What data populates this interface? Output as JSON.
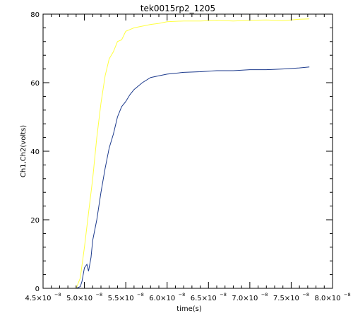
{
  "chart_data": {
    "type": "line",
    "title": "tek0015rp2_1205",
    "xlabel": "time(s)",
    "ylabel": "Ch1,Ch2(volts)",
    "xlim": [
      4.5e-08,
      8e-08
    ],
    "ylim": [
      0,
      80
    ],
    "grid": false,
    "legend": "none",
    "x_ticks": [
      {
        "value": 4.5e-08,
        "mantissa": "4.5×10",
        "exp": "−8"
      },
      {
        "value": 5e-08,
        "mantissa": "5.0×10",
        "exp": "−8"
      },
      {
        "value": 5.5e-08,
        "mantissa": "5.5×10",
        "exp": "−8"
      },
      {
        "value": 6e-08,
        "mantissa": "6.0×10",
        "exp": "−8"
      },
      {
        "value": 6.5e-08,
        "mantissa": "6.5×10",
        "exp": "−8"
      },
      {
        "value": 7e-08,
        "mantissa": "7.0×10",
        "exp": "−8"
      },
      {
        "value": 7.5e-08,
        "mantissa": "7.5×10",
        "exp": "−8"
      },
      {
        "value": 8e-08,
        "mantissa": "8.0×10",
        "exp": "−8"
      }
    ],
    "y_ticks": [
      {
        "value": 0,
        "label": "0"
      },
      {
        "value": 20,
        "label": "20"
      },
      {
        "value": 40,
        "label": "40"
      },
      {
        "value": 60,
        "label": "60"
      },
      {
        "value": 80,
        "label": "80"
      }
    ],
    "series": [
      {
        "color": "#ffff40",
        "x": [
          4.9e-08,
          4.95e-08,
          5e-08,
          5.05e-08,
          5.1e-08,
          5.15e-08,
          5.2e-08,
          5.25e-08,
          5.3e-08,
          5.35e-08,
          5.4e-08,
          5.45e-08,
          5.5e-08,
          5.55e-08,
          5.6e-08,
          5.7e-08,
          5.8e-08,
          5.9e-08,
          6e-08,
          6.2e-08,
          6.4e-08,
          6.6e-08,
          6.8e-08,
          7e-08,
          7.2e-08,
          7.4e-08,
          7.6e-08,
          7.72e-08
        ],
        "values": [
          0,
          3,
          12,
          22,
          32,
          44,
          54,
          62,
          67,
          69,
          72,
          72.5,
          75,
          75.5,
          76,
          76.5,
          77,
          77.3,
          77.8,
          78,
          78,
          78.2,
          78,
          78.2,
          78.3,
          78.1,
          78.5,
          78.6
        ]
      },
      {
        "color": "#1c3a8c",
        "x": [
          4.9e-08,
          4.95e-08,
          4.97e-08,
          5e-08,
          5.03e-08,
          5.05e-08,
          5.08e-08,
          5.1e-08,
          5.15e-08,
          5.2e-08,
          5.25e-08,
          5.3e-08,
          5.35e-08,
          5.4e-08,
          5.45e-08,
          5.5e-08,
          5.55e-08,
          5.6e-08,
          5.7e-08,
          5.8e-08,
          5.9e-08,
          6e-08,
          6.2e-08,
          6.4e-08,
          6.6e-08,
          6.8e-08,
          7e-08,
          7.2e-08,
          7.4e-08,
          7.6e-08,
          7.72e-08
        ],
        "values": [
          0,
          0.5,
          2,
          6,
          7,
          5,
          9,
          14,
          20,
          28,
          35,
          41,
          45,
          50,
          53,
          54.5,
          56.5,
          58,
          60,
          61.5,
          62,
          62.5,
          63,
          63.2,
          63.5,
          63.5,
          63.8,
          63.8,
          64,
          64.3,
          64.6
        ]
      }
    ]
  }
}
